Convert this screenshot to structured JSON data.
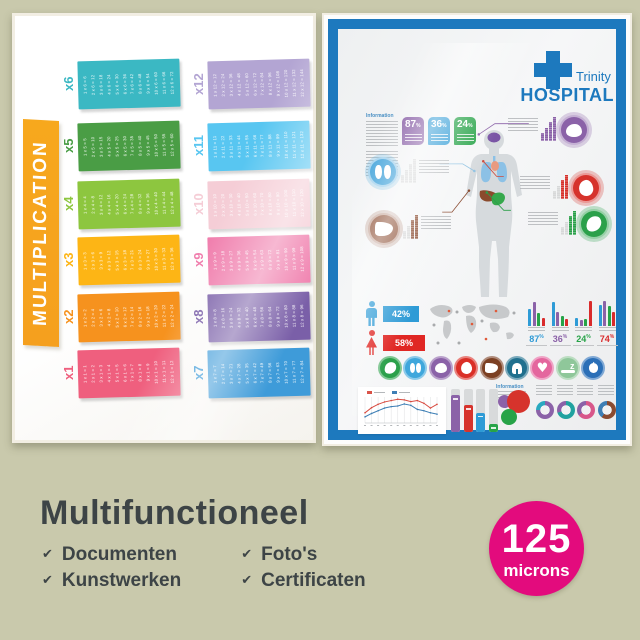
{
  "scene": {
    "background_color": "#c9c9ac"
  },
  "multiplication_poster": {
    "title": "MULTIPLICATION",
    "banner_color": "#f7a81d",
    "tables": [
      {
        "label": "x6",
        "color": "#3bb8c3",
        "entries": [
          "1 x 6 = 6",
          "2 x 6 = 12",
          "3 x 6 = 18",
          "4 x 6 = 24",
          "5 x 6 = 30",
          "6 x 6 = 36",
          "7 x 6 = 42",
          "8 x 6 = 48",
          "9 x 6 = 54",
          "10 x 6 = 60",
          "11 x 6 = 66",
          "12 x 6 = 72"
        ]
      },
      {
        "label": "x5",
        "color": "#4a9d45",
        "entries": [
          "1 x 5 = 5",
          "2 x 5 = 10",
          "3 x 5 = 15",
          "4 x 5 = 20",
          "5 x 5 = 25",
          "6 x 5 = 30",
          "7 x 5 = 35",
          "8 x 5 = 40",
          "9 x 5 = 45",
          "10 x 5 = 50",
          "11 x 5 = 55",
          "12 x 5 = 60"
        ]
      },
      {
        "label": "x4",
        "color": "#8dc63f",
        "entries": [
          "1 x 4 = 4",
          "2 x 4 = 8",
          "3 x 4 = 12",
          "4 x 4 = 16",
          "5 x 4 = 20",
          "6 x 4 = 24",
          "7 x 4 = 28",
          "8 x 4 = 32",
          "9 x 4 = 36",
          "10 x 4 = 40",
          "11 x 4 = 44",
          "12 x 4 = 48"
        ]
      },
      {
        "label": "x3",
        "color": "#fdb515",
        "entries": [
          "1 x 3 = 3",
          "2 x 3 = 6",
          "3 x 3 = 9",
          "4 x 3 = 12",
          "5 x 3 = 15",
          "6 x 3 = 18",
          "7 x 3 = 21",
          "8 x 3 = 24",
          "9 x 3 = 27",
          "10 x 3 = 30",
          "11 x 3 = 33",
          "12 x 3 = 36"
        ]
      },
      {
        "label": "x2",
        "color": "#f6921e",
        "entries": [
          "1 x 2 = 2",
          "2 x 2 = 4",
          "3 x 2 = 6",
          "4 x 2 = 8",
          "5 x 2 = 10",
          "6 x 2 = 12",
          "7 x 2 = 14",
          "8 x 2 = 16",
          "9 x 2 = 18",
          "10 x 2 = 20",
          "11 x 2 = 22",
          "12 x 2 = 24"
        ]
      },
      {
        "label": "x1",
        "color": "#ef5f7e",
        "entries": [
          "1 x 1 = 1",
          "2 x 1 = 2",
          "3 x 1 = 3",
          "4 x 1 = 4",
          "5 x 1 = 5",
          "6 x 1 = 6",
          "7 x 1 = 7",
          "8 x 1 = 8",
          "9 x 1 = 9",
          "10 x 1 = 10",
          "11 x 1 = 11",
          "12 x 1 = 12"
        ]
      },
      {
        "label": "x12",
        "color": "#b3a5d3",
        "entries": [
          "1 x 12 = 12",
          "2 x 12 = 24",
          "3 x 12 = 36",
          "4 x 12 = 48",
          "5 x 12 = 60",
          "6 x 12 = 72",
          "7 x 12 = 84",
          "8 x 12 = 96",
          "9 x 12 = 108",
          "10 x 12 = 120",
          "11 x 12 = 132",
          "12 x 12 = 144"
        ]
      },
      {
        "label": "x11",
        "color": "#58c6f1",
        "entries": [
          "1 x 11 = 11",
          "2 x 11 = 22",
          "3 x 11 = 33",
          "4 x 11 = 44",
          "5 x 11 = 55",
          "6 x 11 = 66",
          "7 x 11 = 77",
          "8 x 11 = 88",
          "9 x 11 = 99",
          "10 x 11 = 110",
          "11 x 11 = 121",
          "12 x 11 = 132"
        ]
      },
      {
        "label": "x10",
        "color": "#f5cdd6",
        "entries": [
          "1 x 10 = 10",
          "2 x 10 = 20",
          "3 x 10 = 30",
          "4 x 10 = 40",
          "5 x 10 = 50",
          "6 x 10 = 60",
          "7 x 10 = 70",
          "8 x 10 = 80",
          "9 x 10 = 90",
          "10 x 10 = 100",
          "11 x 10 = 110",
          "12 x 10 = 120"
        ]
      },
      {
        "label": "x9",
        "color": "#f07ead",
        "entries": [
          "1 x 9 = 9",
          "2 x 9 = 18",
          "3 x 9 = 27",
          "4 x 9 = 36",
          "5 x 9 = 45",
          "6 x 9 = 54",
          "7 x 9 = 63",
          "8 x 9 = 72",
          "9 x 9 = 81",
          "10 x 9 = 90",
          "11 x 9 = 99",
          "12 x 9 = 108"
        ]
      },
      {
        "label": "x8",
        "color": "#7a5fa8",
        "entries": [
          "1 x 8 = 8",
          "2 x 8 = 16",
          "3 x 8 = 24",
          "4 x 8 = 32",
          "5 x 8 = 40",
          "6 x 8 = 48",
          "7 x 8 = 56",
          "8 x 8 = 64",
          "9 x 8 = 72",
          "10 x 8 = 80",
          "11 x 8 = 88",
          "12 x 8 = 96"
        ]
      },
      {
        "label": "x7",
        "color": "#3e9bd9",
        "entries": [
          "1 x 7 = 7",
          "2 x 7 = 14",
          "3 x 7 = 21",
          "4 x 7 = 28",
          "5 x 7 = 35",
          "6 x 7 = 42",
          "7 x 7 = 49",
          "8 x 7 = 56",
          "9 x 7 = 63",
          "10 x 7 = 70",
          "11 x 7 = 77",
          "12 x 7 = 84"
        ]
      }
    ]
  },
  "hospital_poster": {
    "frame_color": "#1d79be",
    "brand": {
      "name": "Trinity",
      "type": "HOSPITAL",
      "color": "#1d79be"
    },
    "info_label": "Information",
    "info_label_bottom": "Information",
    "stat_badges": [
      {
        "value": "87",
        "unit": "%",
        "color": "#8b62a8"
      },
      {
        "value": "36",
        "unit": "%",
        "color": "#2e9bd6"
      },
      {
        "value": "24",
        "unit": "%",
        "color": "#27a348"
      }
    ],
    "organ_callouts": [
      {
        "organ": "brain",
        "color": "#8b62a8"
      },
      {
        "organ": "lungs",
        "color": "#4aa7dc"
      },
      {
        "organ": "heart",
        "color": "#d6332c"
      },
      {
        "organ": "liver",
        "color": "#8a4b30"
      },
      {
        "organ": "stomach",
        "color": "#2ba04a"
      }
    ],
    "gender_stats": [
      {
        "gender": "male",
        "value": "42%",
        "color": "#2e9bd6"
      },
      {
        "gender": "female",
        "value": "58%",
        "color": "#e02724"
      }
    ],
    "region_stats": [
      {
        "value": "87",
        "unit": "%",
        "color": "#2e9bd6",
        "bars": [
          60,
          85,
          45,
          30
        ]
      },
      {
        "value": "36",
        "unit": "%",
        "color": "#8b62a8",
        "bars": [
          85,
          50,
          35,
          25
        ]
      },
      {
        "value": "24",
        "unit": "%",
        "color": "#27a348",
        "bars": [
          30,
          20,
          25,
          90
        ]
      },
      {
        "value": "74",
        "unit": "%",
        "color": "#d92b2b",
        "bars": [
          75,
          90,
          70,
          50
        ]
      }
    ],
    "health_icons": [
      {
        "name": "stomach",
        "color": "#2ba04a"
      },
      {
        "name": "lungs",
        "color": "#3fa7dc"
      },
      {
        "name": "brain",
        "color": "#8b62a8"
      },
      {
        "name": "heart-organ",
        "color": "#da2f27"
      },
      {
        "name": "liver",
        "color": "#7c4023"
      },
      {
        "name": "tooth",
        "color": "#20708e"
      },
      {
        "name": "heart",
        "color": "#e4669e"
      },
      {
        "name": "sleep",
        "color": "#8fc79a"
      },
      {
        "name": "apple",
        "color": "#2b6fb7"
      }
    ],
    "chart_data": [
      {
        "type": "line",
        "x_count": 12,
        "series": [
          {
            "name": "red-series",
            "color": "#d84b40",
            "values": [
              30,
              45,
              55,
              62,
              66,
              70,
              68,
              63,
              66,
              58,
              44,
              55
            ]
          },
          {
            "name": "blue-series",
            "color": "#3e7fb5",
            "values": [
              18,
              28,
              36,
              44,
              48,
              50,
              56,
              52,
              40,
              36,
              30,
              26
            ]
          }
        ]
      },
      {
        "type": "bar",
        "values": [
          85,
          62,
          45,
          18
        ],
        "colors": [
          "#8b62a8",
          "#d6332c",
          "#2e9bd6",
          "#27a348"
        ]
      },
      {
        "type": "bubble",
        "bubbles": [
          {
            "color": "#8b62a8",
            "size": "small"
          },
          {
            "color": "#d6332c",
            "size": "large"
          },
          {
            "color": "#27a348",
            "size": "medium"
          }
        ]
      },
      {
        "type": "donut",
        "segments": [
          75,
          25
        ],
        "colors": [
          "#8b62a8",
          "#2aa9c0"
        ]
      },
      {
        "type": "donut",
        "segments": [
          70,
          30
        ],
        "colors": [
          "#21a2a0",
          "#8b62a8"
        ]
      },
      {
        "type": "donut",
        "segments": [
          65,
          35
        ],
        "colors": [
          "#d8578a",
          "#8b62a8"
        ]
      },
      {
        "type": "donut",
        "segments": [
          60,
          40
        ],
        "colors": [
          "#8a4b30",
          "#3e7fb5"
        ]
      }
    ]
  },
  "caption": {
    "title": "Multifunctioneel",
    "check_glyph": "✔",
    "features": [
      "Documenten",
      "Kunstwerken",
      "Foto's",
      "Certificaten"
    ]
  },
  "thickness_badge": {
    "value": "125",
    "unit": "microns",
    "color": "#e30b7d"
  }
}
